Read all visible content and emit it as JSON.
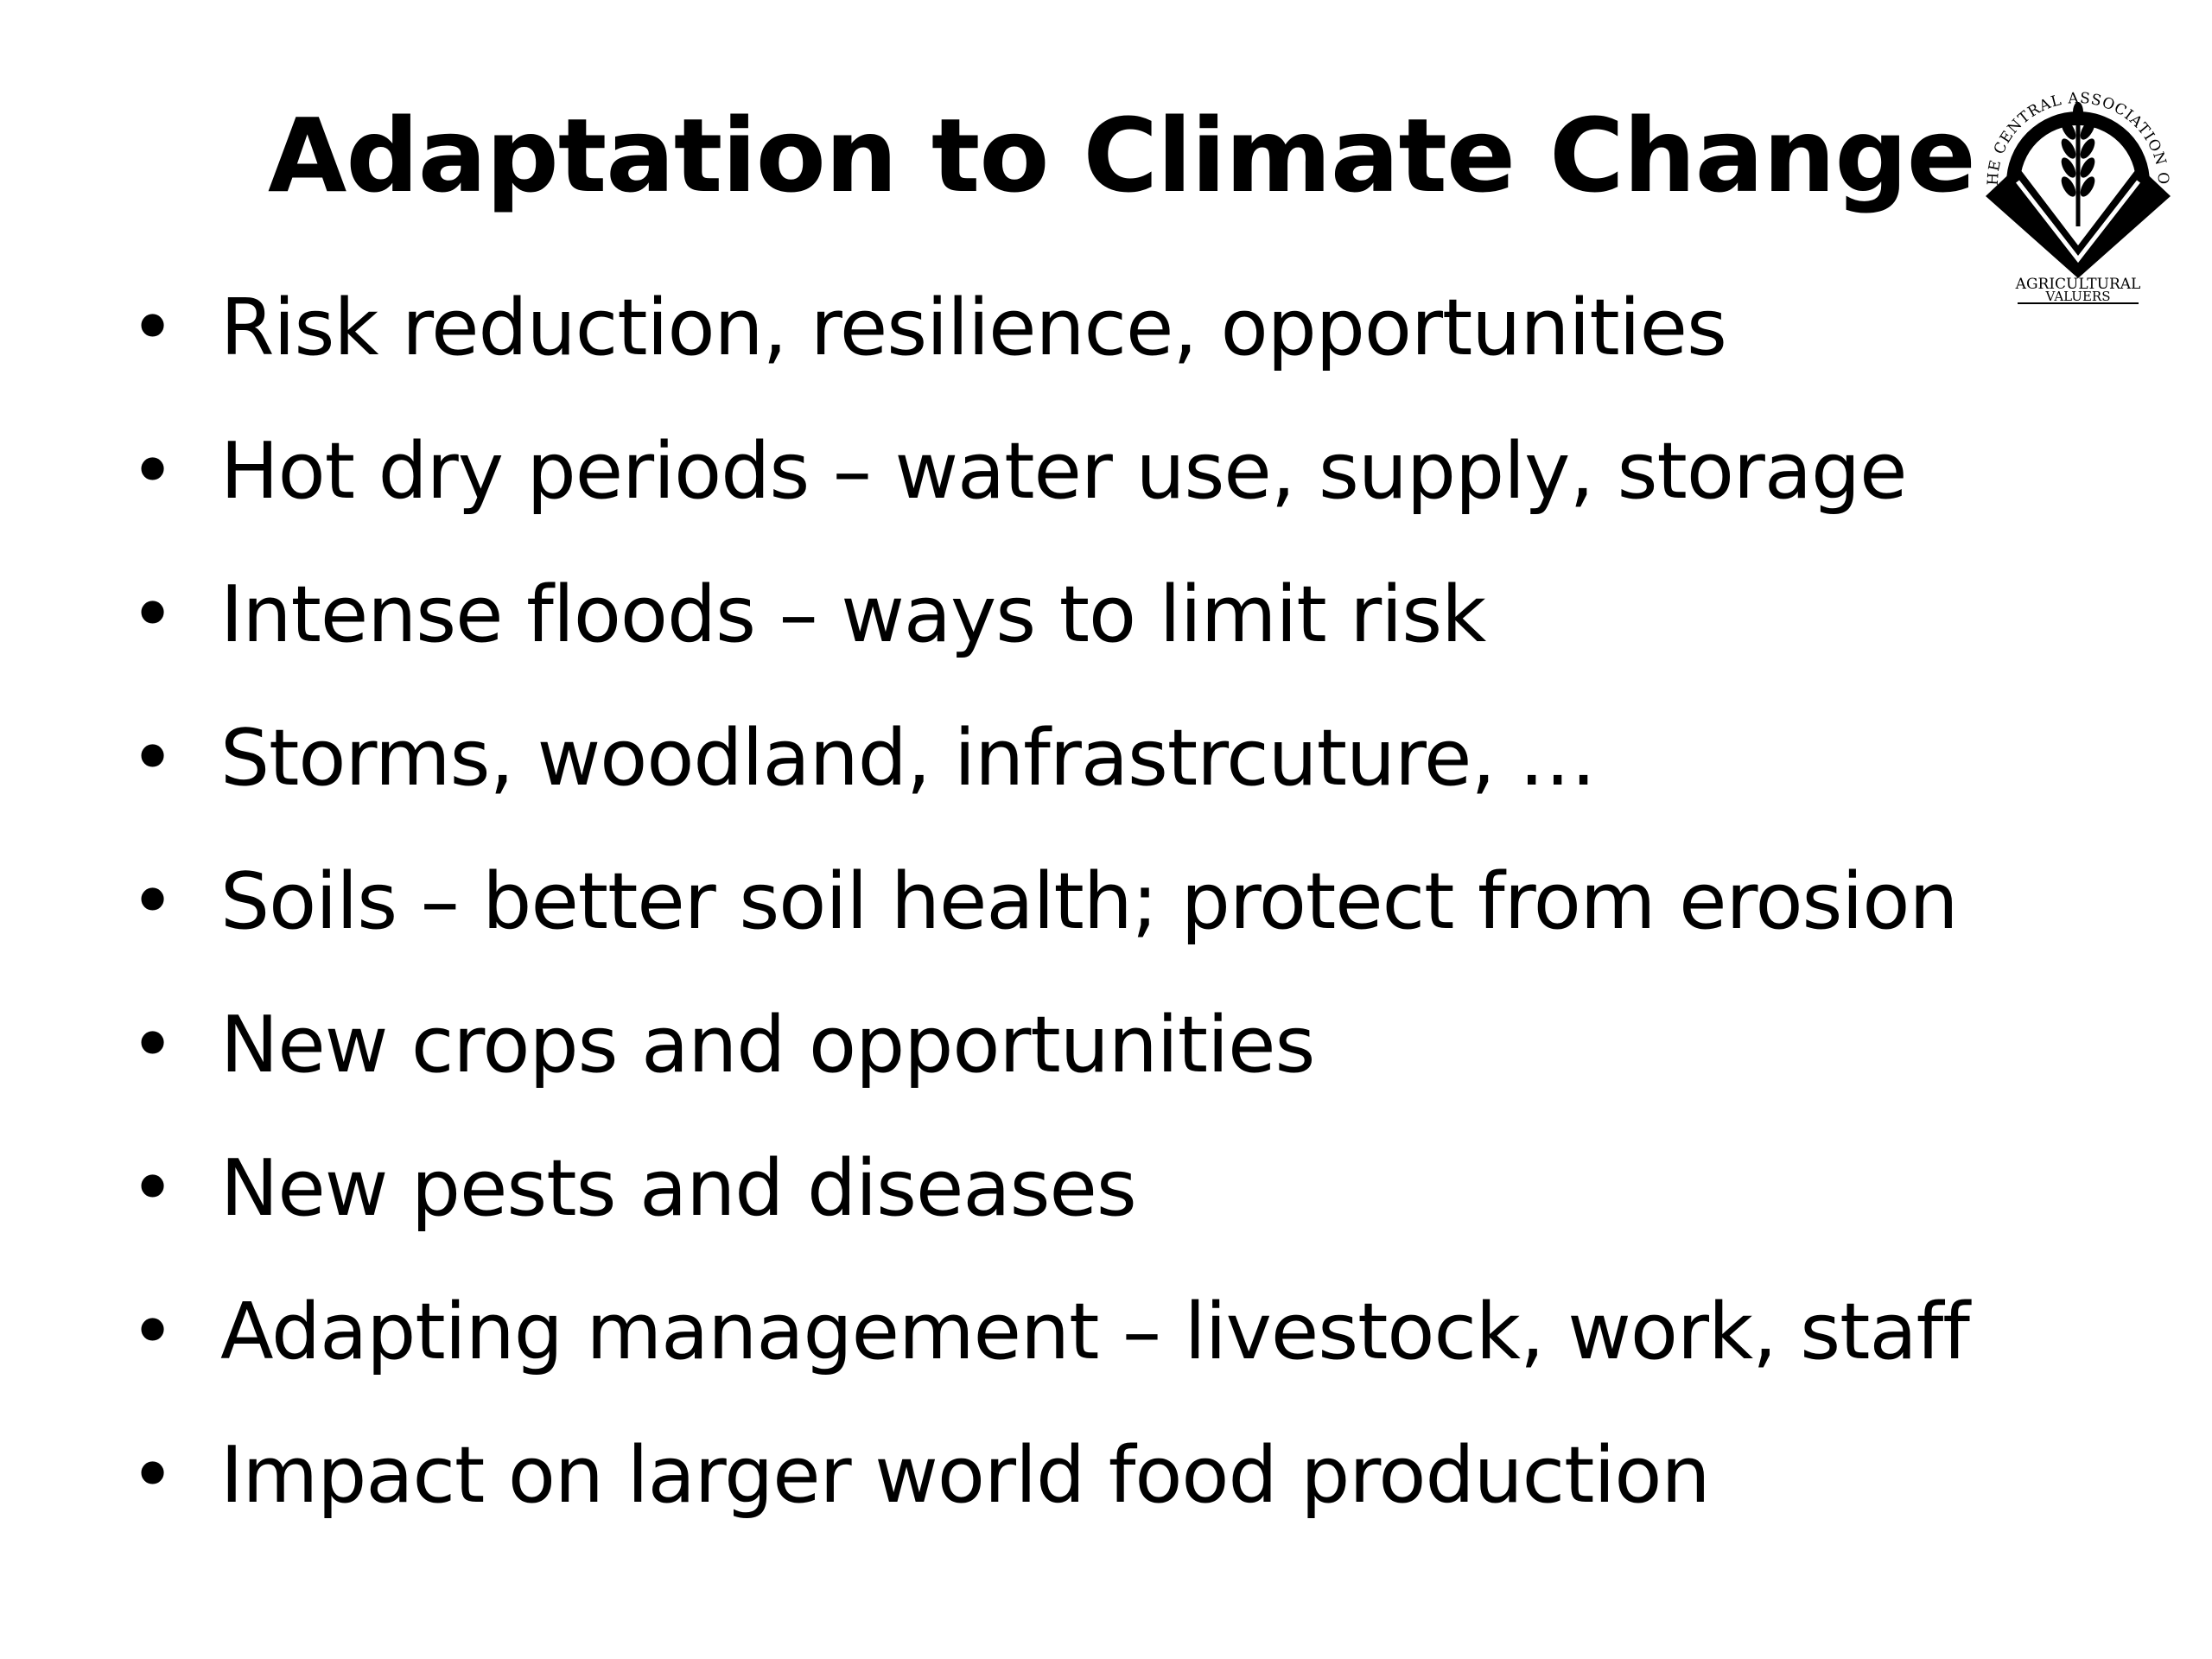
{
  "slide": {
    "title": "Adaptation to Climate Change",
    "logo": {
      "icon": "wheat-emblem",
      "arc_text": "· THE CENTRAL ASSOCIATION OF ·",
      "bottom_line_1": "AGRICULTURAL",
      "bottom_line_2": "VALUERS"
    },
    "bullet_glyph": "•",
    "bullets": [
      "Risk reduction, resilience, opportunities",
      "Hot dry periods – water use, supply, storage",
      "Intense floods – ways to limit risk",
      "Storms, woodland, infrastrcuture, …",
      "Soils – better soil health; protect from erosion",
      "New crops and opportunities",
      "New pests and diseases",
      "Adapting management – livestock, work, staff",
      "Impact on larger world food production"
    ]
  },
  "colors": {
    "background": "#ffffff",
    "text": "#000000"
  }
}
